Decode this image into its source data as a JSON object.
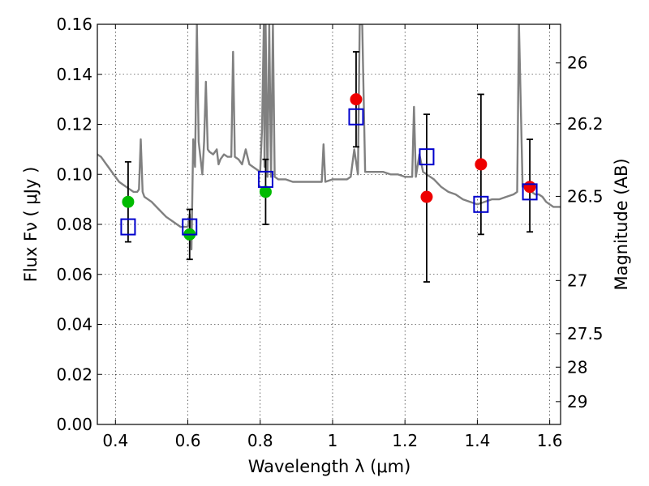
{
  "chart_data": {
    "type": "scatter",
    "xlabel": "Wavelength  λ (μm)",
    "ylabel": "Flux  Fν  ( μJy )",
    "ylabel_right": "Magnitude (AB)",
    "xlim": [
      0.35,
      1.63
    ],
    "ylim": [
      0,
      0.16
    ],
    "grid": true,
    "legend": "none",
    "x_ticks": [
      {
        "value": 0.4,
        "label": "0.4"
      },
      {
        "value": 0.6,
        "label": "0.6"
      },
      {
        "value": 0.8,
        "label": "0.8"
      },
      {
        "value": 1.0,
        "label": "1"
      },
      {
        "value": 1.2,
        "label": "1.2"
      },
      {
        "value": 1.4,
        "label": "1.4"
      },
      {
        "value": 1.6,
        "label": "1.6"
      }
    ],
    "y_ticks": [
      {
        "value": 0.0,
        "label": "0.00"
      },
      {
        "value": 0.02,
        "label": "0.02"
      },
      {
        "value": 0.04,
        "label": "0.04"
      },
      {
        "value": 0.06,
        "label": "0.06"
      },
      {
        "value": 0.08,
        "label": "0.08"
      },
      {
        "value": 0.1,
        "label": "0.10"
      },
      {
        "value": 0.12,
        "label": "0.12"
      },
      {
        "value": 0.14,
        "label": "0.14"
      },
      {
        "value": 0.16,
        "label": "0.16"
      }
    ],
    "mag_ticks": [
      {
        "value": 26,
        "label": "26"
      },
      {
        "value": 26.2,
        "label": "26.2"
      },
      {
        "value": 26.5,
        "label": "26.5"
      },
      {
        "value": 27,
        "label": "27"
      },
      {
        "value": 27.5,
        "label": "27.5"
      },
      {
        "value": 28,
        "label": "28"
      },
      {
        "value": 29,
        "label": "29"
      }
    ],
    "series": [
      {
        "type": "line",
        "color": "#808080",
        "points": [
          [
            0.35,
            0.108
          ],
          [
            0.36,
            0.107
          ],
          [
            0.37,
            0.105
          ],
          [
            0.38,
            0.103
          ],
          [
            0.39,
            0.101
          ],
          [
            0.4,
            0.099
          ],
          [
            0.41,
            0.097
          ],
          [
            0.42,
            0.096
          ],
          [
            0.43,
            0.095
          ],
          [
            0.44,
            0.094
          ],
          [
            0.45,
            0.093
          ],
          [
            0.46,
            0.093
          ],
          [
            0.465,
            0.094
          ],
          [
            0.47,
            0.114
          ],
          [
            0.475,
            0.093
          ],
          [
            0.48,
            0.091
          ],
          [
            0.5,
            0.089
          ],
          [
            0.52,
            0.086
          ],
          [
            0.54,
            0.083
          ],
          [
            0.56,
            0.081
          ],
          [
            0.58,
            0.079
          ],
          [
            0.6,
            0.079
          ],
          [
            0.605,
            0.084
          ],
          [
            0.61,
            0.07
          ],
          [
            0.615,
            0.114
          ],
          [
            0.62,
            0.103
          ],
          [
            0.625,
            0.16
          ],
          [
            0.63,
            0.113
          ],
          [
            0.64,
            0.1
          ],
          [
            0.645,
            0.113
          ],
          [
            0.65,
            0.137
          ],
          [
            0.655,
            0.11
          ],
          [
            0.66,
            0.109
          ],
          [
            0.67,
            0.108
          ],
          [
            0.68,
            0.11
          ],
          [
            0.685,
            0.104
          ],
          [
            0.69,
            0.106
          ],
          [
            0.7,
            0.108
          ],
          [
            0.71,
            0.107
          ],
          [
            0.72,
            0.107
          ],
          [
            0.725,
            0.149
          ],
          [
            0.73,
            0.107
          ],
          [
            0.74,
            0.106
          ],
          [
            0.75,
            0.104
          ],
          [
            0.76,
            0.11
          ],
          [
            0.77,
            0.104
          ],
          [
            0.78,
            0.103
          ],
          [
            0.79,
            0.102
          ],
          [
            0.8,
            0.101
          ],
          [
            0.805,
            0.118
          ],
          [
            0.81,
            0.16
          ],
          [
            0.812,
            0.103
          ],
          [
            0.815,
            0.16
          ],
          [
            0.82,
            0.099
          ],
          [
            0.825,
            0.16
          ],
          [
            0.83,
            0.099
          ],
          [
            0.835,
            0.16
          ],
          [
            0.84,
            0.099
          ],
          [
            0.85,
            0.098
          ],
          [
            0.87,
            0.098
          ],
          [
            0.89,
            0.097
          ],
          [
            0.91,
            0.097
          ],
          [
            0.93,
            0.097
          ],
          [
            0.95,
            0.097
          ],
          [
            0.97,
            0.097
          ],
          [
            0.975,
            0.112
          ],
          [
            0.98,
            0.097
          ],
          [
            1.0,
            0.098
          ],
          [
            1.02,
            0.098
          ],
          [
            1.04,
            0.098
          ],
          [
            1.05,
            0.099
          ],
          [
            1.06,
            0.11
          ],
          [
            1.07,
            0.1
          ],
          [
            1.075,
            0.16
          ],
          [
            1.082,
            0.16
          ],
          [
            1.09,
            0.101
          ],
          [
            1.1,
            0.101
          ],
          [
            1.12,
            0.101
          ],
          [
            1.14,
            0.101
          ],
          [
            1.16,
            0.1
          ],
          [
            1.18,
            0.1
          ],
          [
            1.2,
            0.099
          ],
          [
            1.22,
            0.099
          ],
          [
            1.225,
            0.127
          ],
          [
            1.23,
            0.099
          ],
          [
            1.24,
            0.108
          ],
          [
            1.25,
            0.101
          ],
          [
            1.26,
            0.1
          ],
          [
            1.28,
            0.098
          ],
          [
            1.3,
            0.095
          ],
          [
            1.32,
            0.093
          ],
          [
            1.34,
            0.092
          ],
          [
            1.36,
            0.09
          ],
          [
            1.38,
            0.089
          ],
          [
            1.4,
            0.088
          ],
          [
            1.42,
            0.089
          ],
          [
            1.44,
            0.09
          ],
          [
            1.46,
            0.09
          ],
          [
            1.48,
            0.091
          ],
          [
            1.5,
            0.092
          ],
          [
            1.51,
            0.093
          ],
          [
            1.515,
            0.16
          ],
          [
            1.525,
            0.095
          ],
          [
            1.53,
            0.096
          ],
          [
            1.54,
            0.094
          ],
          [
            1.55,
            0.093
          ],
          [
            1.56,
            0.092
          ],
          [
            1.57,
            0.092
          ],
          [
            1.58,
            0.091
          ],
          [
            1.59,
            0.089
          ],
          [
            1.6,
            0.088
          ],
          [
            1.61,
            0.087
          ],
          [
            1.63,
            0.087
          ]
        ]
      },
      {
        "type": "scatter",
        "marker": "circle",
        "color": "#00bb00",
        "points": [
          {
            "x": 0.435,
            "y": 0.089
          },
          {
            "x": 0.605,
            "y": 0.076
          },
          {
            "x": 0.815,
            "y": 0.093
          }
        ]
      },
      {
        "type": "scatter",
        "marker": "circle",
        "color": "#ee0000",
        "points": [
          {
            "x": 1.065,
            "y": 0.13
          },
          {
            "x": 1.26,
            "y": 0.091
          },
          {
            "x": 1.41,
            "y": 0.104
          },
          {
            "x": 1.545,
            "y": 0.095
          }
        ]
      },
      {
        "type": "scatter",
        "marker": "open-square",
        "color": "#0000cc",
        "points": [
          {
            "x": 0.435,
            "y": 0.079
          },
          {
            "x": 0.605,
            "y": 0.079
          },
          {
            "x": 0.815,
            "y": 0.098
          },
          {
            "x": 1.065,
            "y": 0.123
          },
          {
            "x": 1.26,
            "y": 0.107
          },
          {
            "x": 1.41,
            "y": 0.088
          },
          {
            "x": 1.545,
            "y": 0.093
          }
        ]
      },
      {
        "type": "errorbar",
        "color": "#000000",
        "points": [
          {
            "x": 0.435,
            "low": 0.073,
            "high": 0.105
          },
          {
            "x": 0.605,
            "low": 0.066,
            "high": 0.086
          },
          {
            "x": 0.815,
            "low": 0.08,
            "high": 0.106
          },
          {
            "x": 1.065,
            "low": 0.111,
            "high": 0.149
          },
          {
            "x": 1.26,
            "low": 0.057,
            "high": 0.124
          },
          {
            "x": 1.41,
            "low": 0.076,
            "high": 0.132
          },
          {
            "x": 1.545,
            "low": 0.077,
            "high": 0.114
          }
        ]
      }
    ]
  }
}
